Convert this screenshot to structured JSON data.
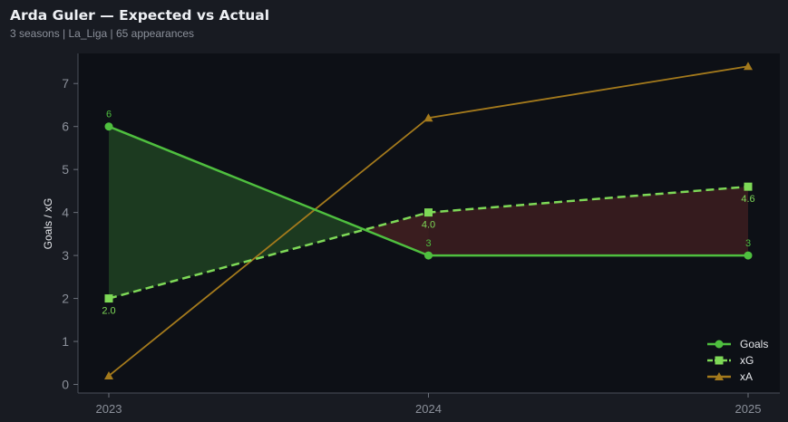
{
  "header": {
    "title": "Arda Guler — Expected vs Actual",
    "subtitle": "3 seasons | La_Liga | 65 appearances"
  },
  "chart_data": {
    "type": "line",
    "title": "Arda Guler — Expected vs Actual",
    "xlabel": "",
    "ylabel": "Goals / xG",
    "categories": [
      "2023",
      "2024",
      "2025"
    ],
    "ylim": [
      -0.2,
      7.7
    ],
    "yticks": [
      0,
      1,
      2,
      3,
      4,
      5,
      6,
      7
    ],
    "grid": false,
    "legend_position": "bottom-right",
    "series": [
      {
        "name": "Goals",
        "values": [
          6,
          3,
          3
        ],
        "labels": [
          "6",
          "3",
          "3"
        ],
        "color": "#4fbf3f",
        "marker": "circle",
        "dash": false
      },
      {
        "name": "xG",
        "values": [
          2.0,
          4.0,
          4.6
        ],
        "labels": [
          "2.0",
          "4.0",
          "4.6"
        ],
        "color": "#7ed957",
        "marker": "square",
        "dash": true
      },
      {
        "name": "xA",
        "values": [
          0.2,
          6.2,
          7.4
        ],
        "color": "#a47a1c",
        "marker": "triangle",
        "dash": false
      }
    ],
    "fill_over_color": "#1c3a20",
    "fill_under_color": "#3a1d1f"
  }
}
